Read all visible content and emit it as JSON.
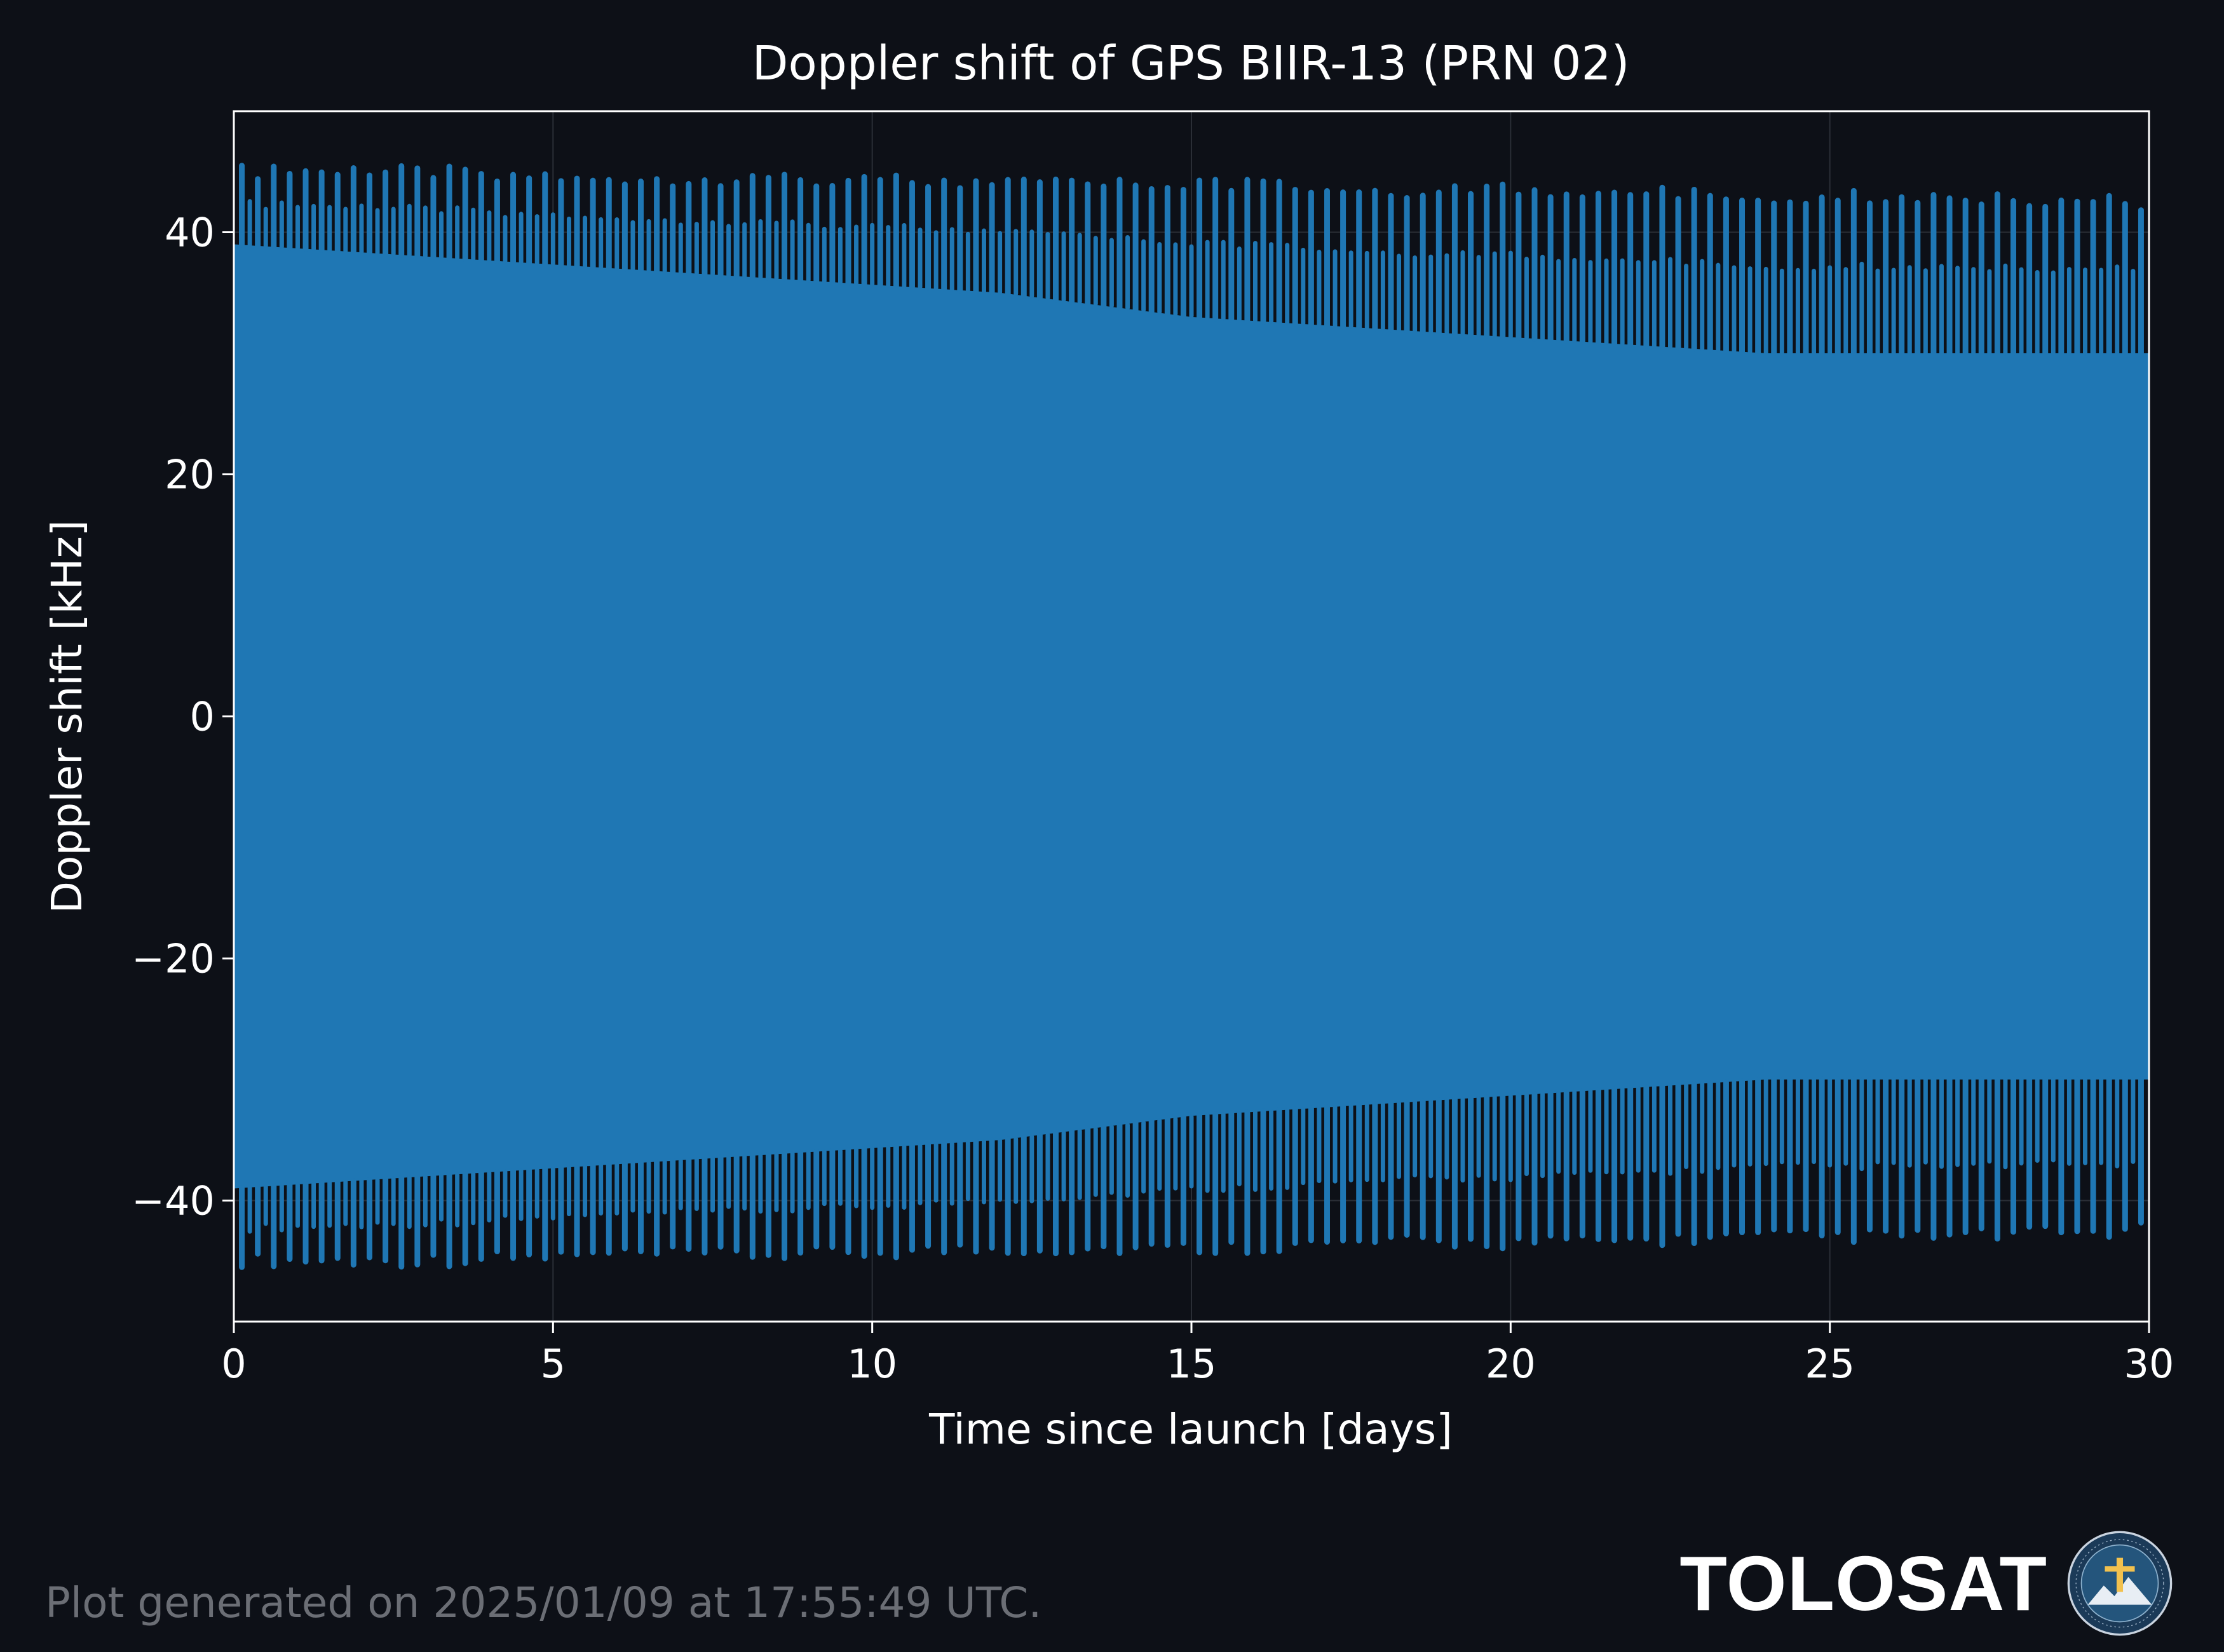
{
  "chart_data": {
    "type": "line",
    "title": "Doppler shift of GPS BIIR-13 (PRN 02)",
    "xlabel": "Time since launch [days]",
    "ylabel": "Doppler shift [kHz]",
    "xlim": [
      0,
      30
    ],
    "ylim": [
      -50,
      50
    ],
    "xticks": [
      0,
      5,
      10,
      15,
      20,
      25,
      30
    ],
    "yticks": [
      -40,
      -20,
      0,
      20,
      40
    ],
    "ytick_labels": [
      "−40",
      "−20",
      "0",
      "20",
      "40"
    ],
    "grid": true,
    "legend": "none",
    "series": [
      {
        "color": "#1f77b4",
        "x": [
          0,
          3,
          6,
          9,
          12,
          15,
          18,
          21,
          24,
          27,
          30
        ],
        "upper_peak": [
          45.5,
          45.5,
          45,
          45,
          44.5,
          44.5,
          44,
          44,
          43.5,
          43.5,
          43
        ],
        "lower_peak": [
          -45.5,
          -45.5,
          -45,
          -45,
          -44.5,
          -44.5,
          -44,
          -44,
          -43.5,
          -43.5,
          -43
        ],
        "upper_envelope_inner": [
          39,
          38,
          37,
          36,
          35,
          33,
          32,
          31,
          30,
          30,
          30
        ],
        "lower_envelope_inner": [
          -39,
          -38,
          -37,
          -36,
          -35,
          -33,
          -32,
          -31,
          -30,
          -30,
          -30
        ]
      }
    ],
    "colors": {
      "background": "#0d1017",
      "line": "#1f77b4",
      "axes": "#ffffff",
      "text": "#ffffff"
    }
  },
  "footer": {
    "generated": "Plot generated on 2025/01/09 at 17:55:49 UTC."
  },
  "brand": {
    "name": "TOLOSAT",
    "logo_text": "ASTRE·CC SUPAERO TOLOSAT"
  }
}
